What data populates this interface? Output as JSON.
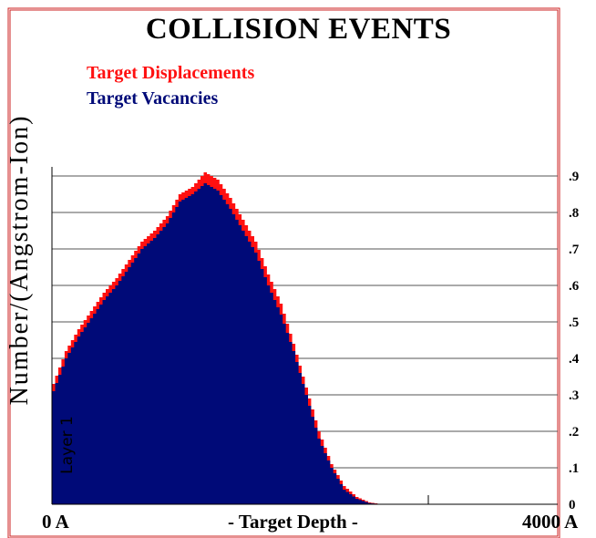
{
  "chart_data": {
    "type": "area",
    "title": "COLLISION EVENTS",
    "ylabel": "Number/(Angstrom-Ion)",
    "xlabel": "- Target Depth -",
    "x_tick_labels": [
      "0 A",
      "4000 A"
    ],
    "xlim": [
      0,
      4000
    ],
    "ylim": [
      0,
      0.9
    ],
    "y_tick_labels": [
      "0",
      ".1",
      ".2",
      ".3",
      ".4",
      ".5",
      ".6",
      ".7",
      ".8",
      ".9"
    ],
    "y_ticks": [
      0,
      0.1,
      0.2,
      0.3,
      0.4,
      0.5,
      0.6,
      0.7,
      0.8,
      0.9
    ],
    "grid": true,
    "annotation": "Layer 1",
    "x": [
      0,
      100,
      200,
      300,
      400,
      500,
      600,
      700,
      800,
      900,
      1000,
      1100,
      1200,
      1300,
      1400,
      1500,
      1600,
      1700,
      1800,
      1900,
      2000,
      2100,
      2200,
      2300,
      2400,
      2500,
      2600,
      2700,
      2800,
      2900,
      3000
    ],
    "series": [
      {
        "name": "Target Displacements",
        "color": "#ff1010",
        "values": [
          0.33,
          0.42,
          0.48,
          0.53,
          0.58,
          0.62,
          0.67,
          0.72,
          0.75,
          0.79,
          0.85,
          0.87,
          0.91,
          0.89,
          0.84,
          0.78,
          0.72,
          0.63,
          0.55,
          0.44,
          0.32,
          0.2,
          0.11,
          0.05,
          0.02,
          0.005,
          0.0,
          0.0,
          0.0,
          0.0,
          0.0
        ]
      },
      {
        "name": "Target Vacancies",
        "color": "#000a78",
        "values": [
          0.31,
          0.4,
          0.46,
          0.51,
          0.56,
          0.6,
          0.65,
          0.7,
          0.73,
          0.77,
          0.83,
          0.85,
          0.88,
          0.86,
          0.81,
          0.75,
          0.69,
          0.6,
          0.52,
          0.42,
          0.3,
          0.18,
          0.1,
          0.04,
          0.015,
          0.003,
          0.0,
          0.0,
          0.0,
          0.0,
          0.0
        ]
      }
    ]
  }
}
